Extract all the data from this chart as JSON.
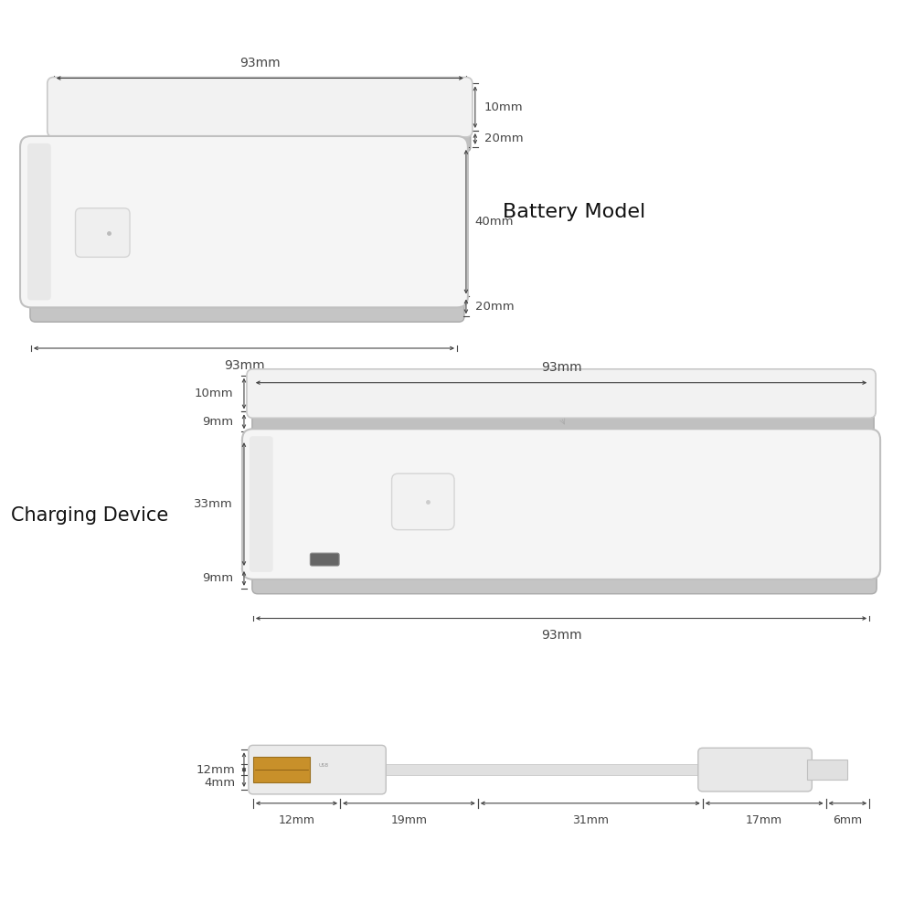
{
  "bg_color": "#ffffff",
  "line_color": "#444444",
  "text_color": "#111111",
  "usb_gold": "#c8902a",
  "battery_model_label": "Battery Model",
  "charging_device_label": "Charging Device",
  "batt_top_width_mm": "93mm",
  "batt_top_h1_mm": "10mm",
  "batt_top_h2_mm": "20mm",
  "batt_bottom_width_mm": "93mm",
  "batt_bottom_h1_mm": "40mm",
  "batt_bottom_h2_mm": "20mm",
  "charge_top_width_mm": "93mm",
  "charge_side_h1_mm": "10mm",
  "charge_side_h2_mm": "9mm",
  "charge_body_h1_mm": "33mm",
  "charge_body_h2_mm": "9mm",
  "charge_bottom_width_mm": "93mm",
  "cable_h1_mm": "12mm",
  "cable_h2_mm": "4mm",
  "cable_w1_mm": "12mm",
  "cable_w2_mm": "19mm",
  "cable_w3_mm": "31mm",
  "cable_w4_mm": "17mm",
  "cable_w5_mm": "6mm",
  "device_face": "#f5f5f5",
  "device_side": "#c8c8c8",
  "device_edge": "#bbbbbb",
  "btn_face": "#eeeeee",
  "btn_edge": "#cccccc",
  "cable_white": "#e8e8e8",
  "cable_gray": "#d0d0d0"
}
